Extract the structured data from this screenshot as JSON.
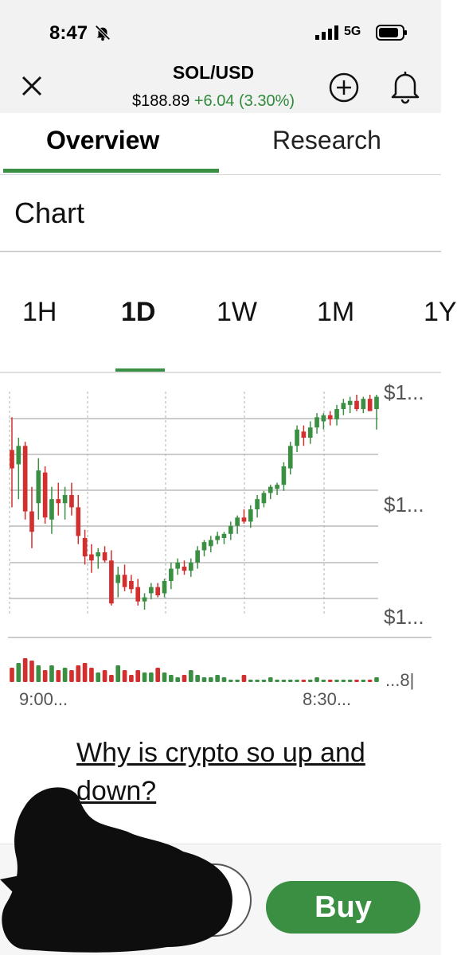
{
  "status_bar": {
    "time": "8:47",
    "network": "5G"
  },
  "header": {
    "title": "SOL/USD",
    "price": "$188.89",
    "change": "+6.04 (3.30%)"
  },
  "tabs": [
    {
      "label": "Overview"
    },
    {
      "label": "Research"
    }
  ],
  "section_title": "Chart",
  "ranges": [
    {
      "label": "1H"
    },
    {
      "label": "1D"
    },
    {
      "label": "1W"
    },
    {
      "label": "1M"
    },
    {
      "label": "1Y"
    }
  ],
  "selected_range": "1D",
  "colors": {
    "accent": "#3a8f43",
    "up": "#3a8f43",
    "down": "#d32f2f"
  },
  "chart_data": {
    "type": "candlestick",
    "y_tick_labels": [
      "$1...",
      "$1...",
      "$1..."
    ],
    "x_tick_labels": [
      "9:00...",
      "8:30..."
    ],
    "volume_label": "...8|",
    "candles": [
      {
        "o": 74,
        "h": 90,
        "l": 46,
        "c": 65
      },
      {
        "o": 67,
        "h": 80,
        "l": 50,
        "c": 76
      },
      {
        "o": 76,
        "h": 78,
        "l": 40,
        "c": 44
      },
      {
        "o": 44,
        "h": 56,
        "l": 26,
        "c": 34
      },
      {
        "o": 48,
        "h": 70,
        "l": 40,
        "c": 64
      },
      {
        "o": 63,
        "h": 66,
        "l": 38,
        "c": 41
      },
      {
        "o": 40,
        "h": 56,
        "l": 33,
        "c": 50
      },
      {
        "o": 50,
        "h": 58,
        "l": 42,
        "c": 48
      },
      {
        "o": 48,
        "h": 56,
        "l": 40,
        "c": 52
      },
      {
        "o": 52,
        "h": 58,
        "l": 42,
        "c": 46
      },
      {
        "o": 46,
        "h": 52,
        "l": 28,
        "c": 32
      },
      {
        "o": 31,
        "h": 35,
        "l": 18,
        "c": 22
      },
      {
        "o": 23,
        "h": 28,
        "l": 14,
        "c": 20
      },
      {
        "o": 22,
        "h": 26,
        "l": 16,
        "c": 24
      },
      {
        "o": 24,
        "h": 27,
        "l": 19,
        "c": 20
      },
      {
        "o": 20,
        "h": 25,
        "l": -2,
        "c": -1
      },
      {
        "o": 9,
        "h": 17,
        "l": 2,
        "c": 13
      },
      {
        "o": 13,
        "h": 18,
        "l": 5,
        "c": 7
      },
      {
        "o": 10,
        "h": 13,
        "l": 4,
        "c": 6
      },
      {
        "o": 7,
        "h": 11,
        "l": -2,
        "c": 0
      },
      {
        "o": 0,
        "h": 4,
        "l": -4,
        "c": 2
      },
      {
        "o": 4,
        "h": 9,
        "l": 1,
        "c": 7
      },
      {
        "o": 7,
        "h": 9,
        "l": 2,
        "c": 3
      },
      {
        "o": 4,
        "h": 11,
        "l": 2,
        "c": 10
      },
      {
        "o": 10,
        "h": 19,
        "l": 6,
        "c": 16
      },
      {
        "o": 16,
        "h": 21,
        "l": 13,
        "c": 19
      },
      {
        "o": 17,
        "h": 20,
        "l": 13,
        "c": 15
      },
      {
        "o": 15,
        "h": 21,
        "l": 12,
        "c": 19
      },
      {
        "o": 19,
        "h": 27,
        "l": 16,
        "c": 25
      },
      {
        "o": 25,
        "h": 30,
        "l": 22,
        "c": 29
      },
      {
        "o": 27,
        "h": 32,
        "l": 24,
        "c": 30
      },
      {
        "o": 30,
        "h": 34,
        "l": 28,
        "c": 32
      },
      {
        "o": 31,
        "h": 34,
        "l": 28,
        "c": 33
      },
      {
        "o": 33,
        "h": 39,
        "l": 30,
        "c": 37
      },
      {
        "o": 37,
        "h": 42,
        "l": 33,
        "c": 41
      },
      {
        "o": 41,
        "h": 45,
        "l": 38,
        "c": 39
      },
      {
        "o": 39,
        "h": 47,
        "l": 36,
        "c": 45
      },
      {
        "o": 45,
        "h": 52,
        "l": 41,
        "c": 50
      },
      {
        "o": 48,
        "h": 54,
        "l": 46,
        "c": 53
      },
      {
        "o": 53,
        "h": 57,
        "l": 50,
        "c": 56
      },
      {
        "o": 55,
        "h": 58,
        "l": 52,
        "c": 57
      },
      {
        "o": 57,
        "h": 68,
        "l": 54,
        "c": 66
      },
      {
        "o": 65,
        "h": 78,
        "l": 62,
        "c": 76
      },
      {
        "o": 76,
        "h": 86,
        "l": 73,
        "c": 84
      },
      {
        "o": 83,
        "h": 86,
        "l": 76,
        "c": 80
      },
      {
        "o": 80,
        "h": 88,
        "l": 77,
        "c": 85
      },
      {
        "o": 85,
        "h": 92,
        "l": 82,
        "c": 90
      },
      {
        "o": 88,
        "h": 92,
        "l": 84,
        "c": 91
      },
      {
        "o": 91,
        "h": 93,
        "l": 86,
        "c": 89
      },
      {
        "o": 89,
        "h": 96,
        "l": 86,
        "c": 94
      },
      {
        "o": 94,
        "h": 99,
        "l": 91,
        "c": 97
      },
      {
        "o": 96,
        "h": 100,
        "l": 92,
        "c": 98
      },
      {
        "o": 98,
        "h": 101,
        "l": 93,
        "c": 94
      },
      {
        "o": 94,
        "h": 100,
        "l": 92,
        "c": 99
      },
      {
        "o": 99,
        "h": 101,
        "l": 94,
        "c": 93
      },
      {
        "o": 94,
        "h": 101,
        "l": 84,
        "c": 100
      }
    ],
    "volumes": [
      6,
      8,
      10,
      9,
      7,
      5,
      7,
      5,
      6,
      5,
      7,
      8,
      6,
      4,
      5,
      3,
      7,
      5,
      3,
      5,
      4,
      4,
      6,
      4,
      3,
      2,
      3,
      5,
      3,
      2,
      2,
      3,
      2,
      1,
      1,
      3,
      1,
      1,
      1,
      2,
      1,
      1,
      1,
      1,
      1,
      1,
      2,
      1,
      1,
      1,
      1,
      1,
      1,
      1,
      1,
      2
    ]
  },
  "link_text": "Why is crypto so up and down?",
  "buy_label": "Buy"
}
